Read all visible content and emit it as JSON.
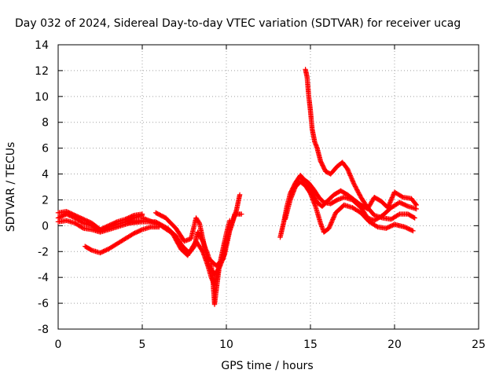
{
  "chart_data": {
    "type": "scatter",
    "title": "Day 032 of 2024, Sidereal Day-to-day VTEC variation (SDTVAR) for receiver ucag",
    "xlabel": "GPS time / hours",
    "ylabel": "SDTVAR / TECUs",
    "xlim": [
      0,
      25
    ],
    "ylim": [
      -8,
      14
    ],
    "xticks": [
      0,
      5,
      10,
      15,
      20,
      25
    ],
    "yticks": [
      -8,
      -6,
      -4,
      -2,
      0,
      2,
      4,
      6,
      8,
      10,
      12,
      14
    ],
    "grid": true,
    "marker": "+",
    "color": "#ff0000",
    "series": [
      {
        "name": "track-1",
        "points": [
          [
            0,
            1.0
          ],
          [
            0.5,
            1.1
          ],
          [
            1.0,
            0.8
          ],
          [
            1.5,
            0.5
          ],
          [
            2.0,
            0.2
          ],
          [
            2.5,
            -0.3
          ],
          [
            3.0,
            0.0
          ],
          [
            3.5,
            0.3
          ],
          [
            4.0,
            0.5
          ],
          [
            4.5,
            0.8
          ],
          [
            5.0,
            0.9
          ]
        ]
      },
      {
        "name": "track-2",
        "points": [
          [
            0,
            0.6
          ],
          [
            0.5,
            0.9
          ],
          [
            1.0,
            0.6
          ],
          [
            1.5,
            0.2
          ],
          [
            2.0,
            0.0
          ],
          [
            2.5,
            -0.4
          ],
          [
            3.0,
            -0.1
          ],
          [
            3.5,
            0.1
          ],
          [
            4.0,
            0.3
          ],
          [
            4.5,
            0.6
          ],
          [
            5.0,
            0.8
          ]
        ]
      },
      {
        "name": "track-3",
        "points": [
          [
            0,
            0.3
          ],
          [
            0.5,
            0.4
          ],
          [
            1.0,
            0.2
          ],
          [
            1.5,
            -0.2
          ],
          [
            2.0,
            -0.3
          ],
          [
            2.5,
            -0.5
          ],
          [
            3.0,
            -0.3
          ],
          [
            3.5,
            -0.1
          ],
          [
            4.0,
            0.1
          ],
          [
            4.5,
            0.3
          ],
          [
            5.0,
            0.4
          ]
        ]
      },
      {
        "name": "track-4",
        "points": [
          [
            1.6,
            -1.6
          ],
          [
            2.0,
            -1.9
          ],
          [
            2.5,
            -2.1
          ],
          [
            3.0,
            -1.8
          ],
          [
            3.5,
            -1.4
          ],
          [
            4.0,
            -1.0
          ],
          [
            4.5,
            -0.6
          ],
          [
            5.0,
            -0.3
          ],
          [
            5.5,
            -0.1
          ],
          [
            6.0,
            -0.1
          ]
        ]
      },
      {
        "name": "track-5",
        "points": [
          [
            4.2,
            0.2
          ],
          [
            5.0,
            0.3
          ],
          [
            5.8,
            0.3
          ],
          [
            6.5,
            -0.2
          ],
          [
            7.0,
            -0.8
          ],
          [
            7.4,
            -1.6
          ],
          [
            7.8,
            -2.1
          ],
          [
            8.1,
            -1.6
          ],
          [
            8.3,
            -0.5
          ],
          [
            8.6,
            -1.2
          ],
          [
            9.0,
            -2.6
          ],
          [
            9.4,
            -3.1
          ],
          [
            9.8,
            -2.6
          ],
          [
            10.0,
            -1.2
          ],
          [
            10.2,
            -0.4
          ],
          [
            10.4,
            0.4
          ],
          [
            10.6,
            1.2
          ],
          [
            10.8,
            2.4
          ]
        ]
      },
      {
        "name": "track-6",
        "points": [
          [
            5.8,
            1.0
          ],
          [
            6.4,
            0.6
          ],
          [
            7.0,
            -0.2
          ],
          [
            7.5,
            -1.2
          ],
          [
            7.9,
            -1.0
          ],
          [
            8.2,
            0.6
          ],
          [
            8.4,
            0.2
          ],
          [
            8.7,
            -1.6
          ],
          [
            9.0,
            -3.2
          ],
          [
            9.3,
            -3.8
          ],
          [
            9.6,
            -3.2
          ],
          [
            9.9,
            -2.2
          ],
          [
            10.2,
            -0.4
          ],
          [
            10.5,
            0.9
          ],
          [
            10.9,
            0.9
          ]
        ]
      },
      {
        "name": "track-7",
        "points": [
          [
            5.0,
            0.6
          ],
          [
            6.0,
            0.1
          ],
          [
            6.8,
            -0.6
          ],
          [
            7.3,
            -1.8
          ],
          [
            7.7,
            -2.3
          ],
          [
            8.2,
            -1.2
          ],
          [
            8.6,
            -2.0
          ],
          [
            8.9,
            -3.1
          ],
          [
            9.1,
            -4.0
          ],
          [
            9.3,
            -4.6
          ],
          [
            9.5,
            -3.6
          ]
        ]
      },
      {
        "name": "track-8",
        "points": [
          [
            9.1,
            -3.0
          ],
          [
            9.2,
            -4.2
          ],
          [
            9.3,
            -6.1
          ],
          [
            9.4,
            -5.0
          ],
          [
            9.6,
            -3.0
          ],
          [
            9.8,
            -1.8
          ],
          [
            10.0,
            -0.6
          ],
          [
            10.2,
            0.4
          ]
        ]
      },
      {
        "name": "track-9",
        "points": [
          [
            13.2,
            -0.9
          ],
          [
            13.4,
            0.2
          ],
          [
            13.6,
            1.5
          ],
          [
            13.8,
            2.5
          ],
          [
            14.1,
            3.3
          ],
          [
            14.4,
            3.9
          ],
          [
            14.6,
            3.6
          ],
          [
            14.9,
            3.3
          ],
          [
            15.2,
            2.8
          ],
          [
            15.5,
            2.2
          ],
          [
            15.8,
            1.8
          ],
          [
            16.2,
            1.7
          ],
          [
            16.6,
            2.0
          ],
          [
            17.0,
            2.2
          ],
          [
            17.5,
            2.0
          ],
          [
            18.0,
            1.4
          ],
          [
            18.4,
            0.6
          ],
          [
            18.8,
            0.4
          ],
          [
            19.3,
            0.8
          ],
          [
            19.8,
            1.4
          ],
          [
            20.3,
            1.8
          ],
          [
            20.8,
            1.5
          ],
          [
            21.3,
            1.3
          ]
        ]
      },
      {
        "name": "track-10",
        "points": [
          [
            13.5,
            0.5
          ],
          [
            13.8,
            2.0
          ],
          [
            14.1,
            3.0
          ],
          [
            14.4,
            3.4
          ],
          [
            14.7,
            3.1
          ],
          [
            15.0,
            2.5
          ],
          [
            15.3,
            1.5
          ],
          [
            15.6,
            0.2
          ],
          [
            15.8,
            -0.5
          ],
          [
            16.1,
            -0.2
          ],
          [
            16.5,
            1.0
          ],
          [
            17.0,
            1.6
          ],
          [
            17.5,
            1.4
          ],
          [
            18.0,
            1.0
          ],
          [
            18.5,
            0.3
          ],
          [
            19.0,
            -0.1
          ],
          [
            19.5,
            -0.2
          ],
          [
            20.0,
            0.1
          ],
          [
            20.6,
            -0.1
          ],
          [
            21.1,
            -0.4
          ]
        ]
      },
      {
        "name": "track-11",
        "points": [
          [
            14.7,
            12.1
          ],
          [
            14.8,
            11.5
          ],
          [
            14.9,
            10.0
          ],
          [
            15.0,
            8.9
          ],
          [
            15.1,
            7.5
          ],
          [
            15.25,
            6.5
          ],
          [
            15.4,
            6.0
          ],
          [
            15.6,
            5.0
          ],
          [
            15.9,
            4.2
          ],
          [
            16.2,
            4.0
          ],
          [
            16.6,
            4.6
          ],
          [
            16.9,
            4.9
          ],
          [
            17.2,
            4.4
          ],
          [
            17.6,
            3.2
          ],
          [
            18.0,
            2.2
          ],
          [
            18.4,
            1.4
          ],
          [
            18.8,
            0.8
          ],
          [
            19.3,
            0.6
          ],
          [
            19.8,
            0.5
          ],
          [
            20.3,
            0.9
          ],
          [
            20.8,
            0.9
          ],
          [
            21.2,
            0.6
          ]
        ]
      },
      {
        "name": "track-12",
        "points": [
          [
            14.5,
            3.6
          ],
          [
            14.8,
            3.4
          ],
          [
            15.1,
            2.6
          ],
          [
            15.4,
            1.8
          ],
          [
            15.7,
            1.5
          ],
          [
            16.0,
            1.9
          ],
          [
            16.4,
            2.4
          ],
          [
            16.8,
            2.7
          ],
          [
            17.2,
            2.4
          ],
          [
            17.6,
            2.0
          ],
          [
            18.0,
            1.6
          ],
          [
            18.4,
            1.3
          ],
          [
            18.8,
            2.2
          ],
          [
            19.2,
            1.9
          ],
          [
            19.6,
            1.4
          ],
          [
            20.0,
            2.6
          ],
          [
            20.5,
            2.2
          ],
          [
            21.0,
            2.1
          ],
          [
            21.3,
            1.6
          ]
        ]
      }
    ]
  }
}
